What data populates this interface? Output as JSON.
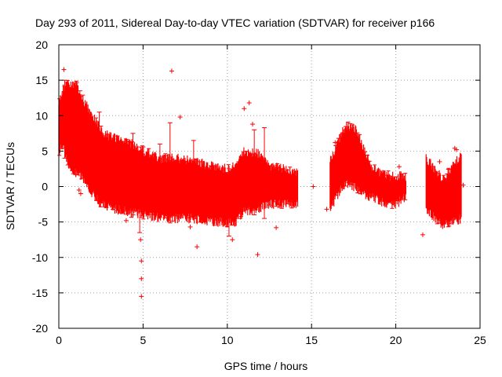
{
  "chart_data": {
    "type": "scatter",
    "title": "Day 293 of 2011, Sidereal Day-to-day VTEC variation (SDTVAR) for receiver p166",
    "xlabel": "GPS time / hours",
    "ylabel": "SDTVAR / TECUs",
    "xlim": [
      0,
      25
    ],
    "ylim": [
      -20,
      20
    ],
    "xticks": [
      0,
      5,
      10,
      15,
      20,
      25
    ],
    "yticks": [
      -20,
      -15,
      -10,
      -5,
      0,
      5,
      10,
      15,
      20
    ],
    "xtick_labels": [
      "0",
      "5",
      "10",
      "15",
      "20",
      "25"
    ],
    "ytick_labels": [
      "-20",
      "-15",
      "-10",
      "-5",
      "0",
      "5",
      "10",
      "15",
      "20"
    ],
    "grid": true,
    "marker": "+",
    "series": [
      {
        "name": "SDTVAR",
        "color": "#ff0000",
        "band": [
          {
            "x": 0.0,
            "lo": 5.0,
            "hi": 12.0
          },
          {
            "x": 0.3,
            "lo": 5.5,
            "hi": 14.0
          },
          {
            "x": 0.6,
            "lo": 3.0,
            "hi": 14.5
          },
          {
            "x": 1.0,
            "lo": 2.0,
            "hi": 14.5
          },
          {
            "x": 1.5,
            "lo": 1.0,
            "hi": 12.0
          },
          {
            "x": 2.0,
            "lo": -1.0,
            "hi": 10.0
          },
          {
            "x": 2.5,
            "lo": -2.5,
            "hi": 8.0
          },
          {
            "x": 3.0,
            "lo": -3.0,
            "hi": 7.0
          },
          {
            "x": 4.0,
            "lo": -3.5,
            "hi": 6.5
          },
          {
            "x": 5.0,
            "lo": -4.0,
            "hi": 5.0
          },
          {
            "x": 6.0,
            "lo": -4.5,
            "hi": 4.0
          },
          {
            "x": 7.0,
            "lo": -4.5,
            "hi": 4.0
          },
          {
            "x": 8.0,
            "lo": -4.5,
            "hi": 3.5
          },
          {
            "x": 9.0,
            "lo": -5.0,
            "hi": 3.0
          },
          {
            "x": 10.0,
            "lo": -5.0,
            "hi": 2.5
          },
          {
            "x": 10.5,
            "lo": -5.0,
            "hi": 3.0
          },
          {
            "x": 11.0,
            "lo": -3.5,
            "hi": 5.0
          },
          {
            "x": 12.0,
            "lo": -3.0,
            "hi": 4.5
          },
          {
            "x": 12.5,
            "lo": -2.5,
            "hi": 3.0
          },
          {
            "x": 13.5,
            "lo": -2.5,
            "hi": 2.5
          },
          {
            "x": 14.2,
            "lo": -2.5,
            "hi": 2.0
          }
        ],
        "band2": [
          {
            "x": 16.1,
            "lo": -3.0,
            "hi": 3.5
          },
          {
            "x": 16.5,
            "lo": -1.5,
            "hi": 6.0
          },
          {
            "x": 17.0,
            "lo": 0.5,
            "hi": 8.5
          },
          {
            "x": 17.5,
            "lo": 0.0,
            "hi": 8.5
          },
          {
            "x": 18.0,
            "lo": -1.0,
            "hi": 6.0
          },
          {
            "x": 18.5,
            "lo": -1.5,
            "hi": 3.0
          },
          {
            "x": 19.0,
            "lo": -2.0,
            "hi": 2.0
          },
          {
            "x": 19.5,
            "lo": -2.5,
            "hi": 1.5
          },
          {
            "x": 20.0,
            "lo": -2.5,
            "hi": 1.5
          },
          {
            "x": 20.6,
            "lo": -1.5,
            "hi": 1.5
          }
        ],
        "band3": [
          {
            "x": 21.8,
            "lo": -3.0,
            "hi": 4.0
          },
          {
            "x": 22.3,
            "lo": -4.5,
            "hi": 2.5
          },
          {
            "x": 22.8,
            "lo": -5.5,
            "hi": 1.0
          },
          {
            "x": 23.3,
            "lo": -5.0,
            "hi": 2.5
          },
          {
            "x": 23.9,
            "lo": -4.5,
            "hi": 4.5
          }
        ],
        "outliers": [
          {
            "x": 0.3,
            "y": 16.5
          },
          {
            "x": 6.7,
            "y": 16.3
          },
          {
            "x": 7.2,
            "y": 9.8
          },
          {
            "x": 11.0,
            "y": 11.0
          },
          {
            "x": 11.3,
            "y": 11.8
          },
          {
            "x": 11.5,
            "y": 8.8
          },
          {
            "x": 4.9,
            "y": -15.5
          },
          {
            "x": 4.9,
            "y": -13.0
          },
          {
            "x": 4.9,
            "y": -10.5
          },
          {
            "x": 4.85,
            "y": -7.5
          },
          {
            "x": 8.2,
            "y": -8.5
          },
          {
            "x": 7.8,
            "y": -5.7
          },
          {
            "x": 11.8,
            "y": -9.6
          },
          {
            "x": 12.9,
            "y": -5.8
          },
          {
            "x": 10.3,
            "y": -7.5
          },
          {
            "x": 1.2,
            "y": -0.5
          },
          {
            "x": 1.3,
            "y": -1.0
          },
          {
            "x": 4.0,
            "y": -4.8
          },
          {
            "x": 15.1,
            "y": 0.0
          },
          {
            "x": 15.9,
            "y": -3.2
          },
          {
            "x": 21.6,
            "y": -6.8
          },
          {
            "x": 22.6,
            "y": 3.5
          },
          {
            "x": 23.5,
            "y": 5.4
          },
          {
            "x": 23.6,
            "y": 5.2
          },
          {
            "x": 24.0,
            "y": 0.2
          },
          {
            "x": 16.4,
            "y": 6.2
          },
          {
            "x": 20.2,
            "y": 2.8
          }
        ],
        "spikes": [
          {
            "x": 0.35,
            "lo": 4.0,
            "hi": 15.0
          },
          {
            "x": 1.25,
            "lo": 2.5,
            "hi": 13.5
          },
          {
            "x": 2.4,
            "lo": 1.0,
            "hi": 10.5
          },
          {
            "x": 4.4,
            "lo": -4.0,
            "hi": 7.5
          },
          {
            "x": 4.8,
            "lo": -6.5,
            "hi": 5.0
          },
          {
            "x": 6.6,
            "lo": -1.0,
            "hi": 9.0
          },
          {
            "x": 6.0,
            "lo": -4.0,
            "hi": 6.0
          },
          {
            "x": 8.0,
            "lo": -3.5,
            "hi": 6.5
          },
          {
            "x": 11.6,
            "lo": -4.0,
            "hi": 8.0
          },
          {
            "x": 12.2,
            "lo": -4.5,
            "hi": 8.3
          },
          {
            "x": 10.1,
            "lo": -7.0,
            "hi": 2.5
          }
        ]
      }
    ]
  }
}
